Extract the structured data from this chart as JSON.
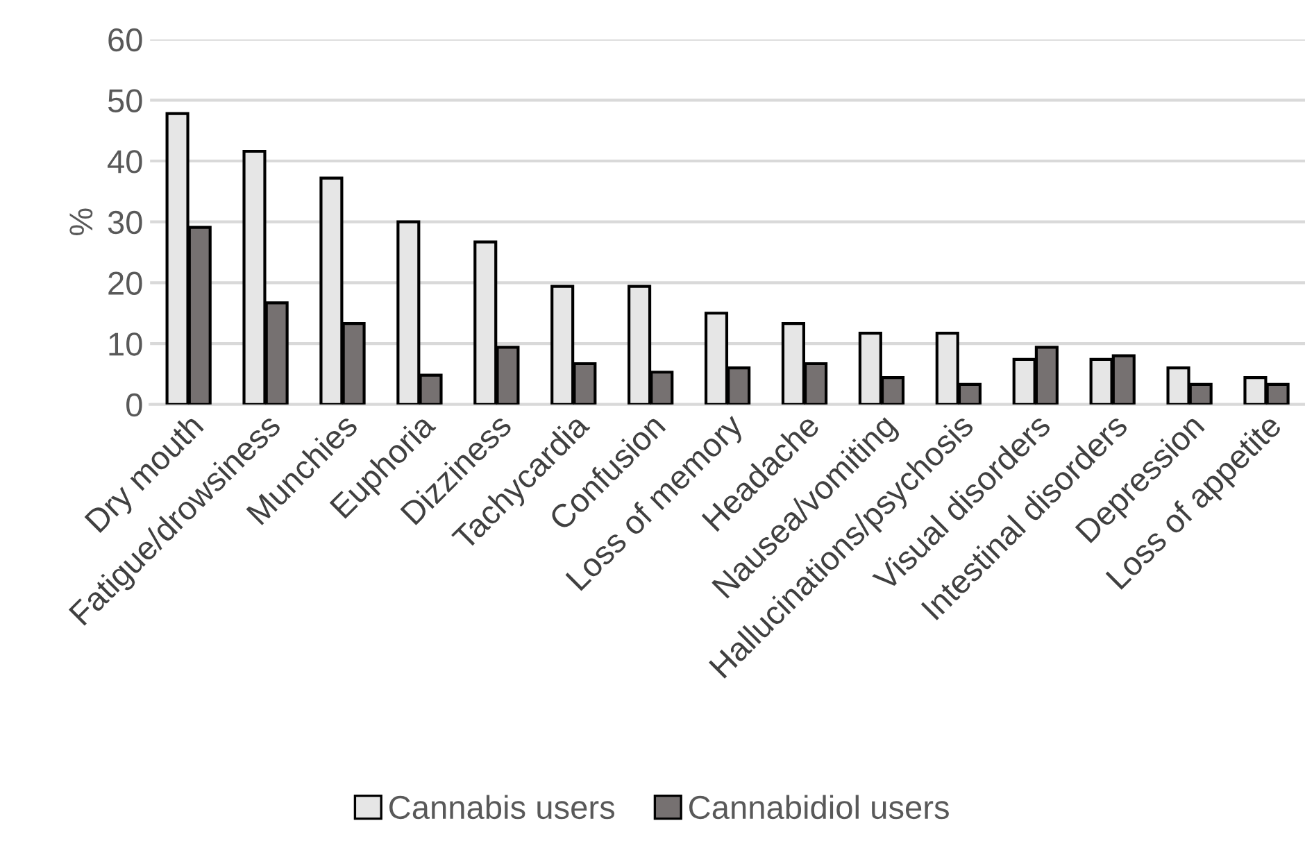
{
  "chart_data": {
    "type": "bar",
    "ylabel": "%",
    "categories": [
      "Dry mouth",
      "Fatigue/drowsiness",
      "Munchies",
      "Euphoria",
      "Dizziness",
      "Tachycardia",
      "Confusion",
      "Loss of memory",
      "Headache",
      "Nausea/vomiting",
      "Hallucinations/psychosis",
      "Visual disorders",
      "Intestinal disorders",
      "Depression",
      "Loss of appetite"
    ],
    "series": [
      {
        "name": "Cannabis users",
        "color": "#e6e6e6",
        "values": [
          47.8,
          41.6,
          37.2,
          30,
          26.7,
          19.4,
          19.4,
          15,
          13.3,
          11.7,
          11.7,
          7.4,
          7.4,
          6,
          4.4
        ]
      },
      {
        "name": "Cannabidiol users",
        "color": "#767171",
        "values": [
          29.1,
          16.7,
          13.3,
          4.8,
          9.4,
          6.7,
          5.3,
          6,
          6.7,
          4.4,
          3.3,
          9.4,
          8,
          3.3,
          3.3
        ]
      }
    ],
    "ylim": [
      0,
      60
    ],
    "yticks": [
      0,
      10,
      20,
      30,
      40,
      50,
      60
    ],
    "grid": "y",
    "legend": "bottom"
  }
}
